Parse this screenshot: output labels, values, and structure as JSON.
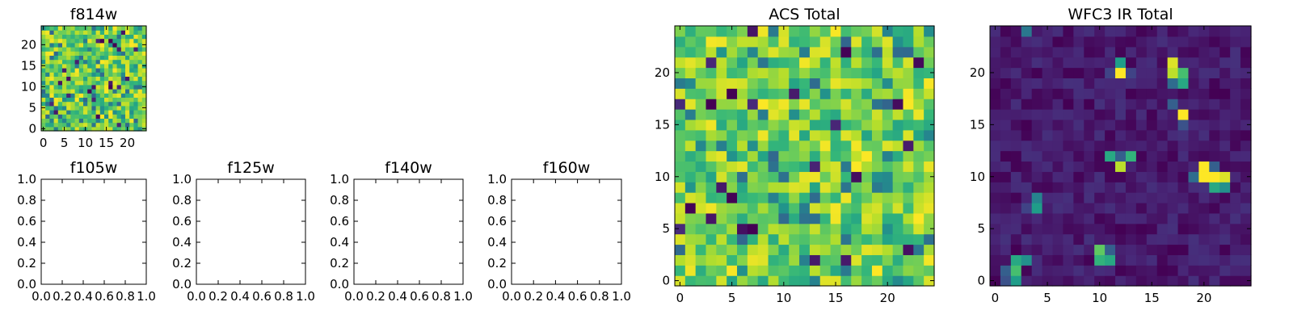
{
  "chart_data": [
    {
      "type": "heatmap",
      "title": "f814w",
      "xticks": [
        "0",
        "5",
        "10",
        "15",
        "20"
      ],
      "yticks": [
        "0",
        "5",
        "10",
        "15",
        "20"
      ],
      "xlim": [
        -0.5,
        24.5
      ],
      "ylim": [
        -0.5,
        24.5
      ],
      "grid_size": 25,
      "pattern": "noise",
      "seed": 11
    },
    {
      "type": "scatter",
      "title": "f105w",
      "xticks": [
        "0.0",
        "0.2",
        "0.4",
        "0.6",
        "0.8",
        "1.0"
      ],
      "yticks": [
        "0.0",
        "0.2",
        "0.4",
        "0.6",
        "0.8",
        "1.0"
      ],
      "xlim": [
        0,
        1
      ],
      "ylim": [
        0,
        1
      ],
      "series": []
    },
    {
      "type": "scatter",
      "title": "f125w",
      "xticks": [
        "0.0",
        "0.2",
        "0.4",
        "0.6",
        "0.8",
        "1.0"
      ],
      "yticks": [
        "0.0",
        "0.2",
        "0.4",
        "0.6",
        "0.8",
        "1.0"
      ],
      "xlim": [
        0,
        1
      ],
      "ylim": [
        0,
        1
      ],
      "series": []
    },
    {
      "type": "scatter",
      "title": "f140w",
      "xticks": [
        "0.0",
        "0.2",
        "0.4",
        "0.6",
        "0.8",
        "1.0"
      ],
      "yticks": [
        "0.0",
        "0.2",
        "0.4",
        "0.6",
        "0.8",
        "1.0"
      ],
      "xlim": [
        0,
        1
      ],
      "ylim": [
        0,
        1
      ],
      "series": []
    },
    {
      "type": "scatter",
      "title": "f160w",
      "xticks": [
        "0.0",
        "0.2",
        "0.4",
        "0.6",
        "0.8",
        "1.0"
      ],
      "yticks": [
        "0.0",
        "0.2",
        "0.4",
        "0.6",
        "0.8",
        "1.0"
      ],
      "xlim": [
        0,
        1
      ],
      "ylim": [
        0,
        1
      ],
      "series": []
    },
    {
      "type": "heatmap",
      "title": "ACS Total",
      "xticks": [
        "0",
        "5",
        "10",
        "15",
        "20"
      ],
      "yticks": [
        "0",
        "5",
        "10",
        "15",
        "20"
      ],
      "xlim": [
        -0.5,
        24.5
      ],
      "ylim": [
        -0.5,
        24.5
      ],
      "grid_size": 25,
      "pattern": "noise",
      "seed": 29
    },
    {
      "type": "heatmap",
      "title": "WFC3 IR Total",
      "xticks": [
        "0",
        "5",
        "10",
        "15",
        "20"
      ],
      "yticks": [
        "0",
        "5",
        "10",
        "15",
        "20"
      ],
      "xlim": [
        -0.5,
        24.5
      ],
      "ylim": [
        -0.5,
        24.5
      ],
      "grid_size": 25,
      "pattern": "sources",
      "seed": 7,
      "background_range": [
        0.0,
        0.14
      ],
      "sources": [
        {
          "x": 3,
          "y": 24,
          "v": 0.4
        },
        {
          "x": 12,
          "y": 20,
          "v": 1.0
        },
        {
          "x": 12,
          "y": 21,
          "v": 0.55
        },
        {
          "x": 11,
          "y": 20,
          "v": 0.2
        },
        {
          "x": 13,
          "y": 20,
          "v": 0.2
        },
        {
          "x": 17,
          "y": 21,
          "v": 0.95
        },
        {
          "x": 17,
          "y": 20,
          "v": 0.9
        },
        {
          "x": 18,
          "y": 20,
          "v": 0.7
        },
        {
          "x": 18,
          "y": 19,
          "v": 0.6
        },
        {
          "x": 17,
          "y": 19,
          "v": 0.35
        },
        {
          "x": 17,
          "y": 17,
          "v": 0.3
        },
        {
          "x": 18,
          "y": 16,
          "v": 1.0
        },
        {
          "x": 18,
          "y": 15,
          "v": 0.25
        },
        {
          "x": 11,
          "y": 12,
          "v": 0.6
        },
        {
          "x": 12,
          "y": 11,
          "v": 0.9
        },
        {
          "x": 13,
          "y": 12,
          "v": 0.65
        },
        {
          "x": 12,
          "y": 12,
          "v": 0.3
        },
        {
          "x": 20,
          "y": 11,
          "v": 1.0
        },
        {
          "x": 20,
          "y": 10,
          "v": 1.0
        },
        {
          "x": 21,
          "y": 10,
          "v": 1.0
        },
        {
          "x": 22,
          "y": 10,
          "v": 0.95
        },
        {
          "x": 21,
          "y": 9,
          "v": 0.6
        },
        {
          "x": 22,
          "y": 9,
          "v": 0.5
        },
        {
          "x": 19,
          "y": 10,
          "v": 0.35
        },
        {
          "x": 21,
          "y": 11,
          "v": 0.3
        },
        {
          "x": 4,
          "y": 8,
          "v": 0.45
        },
        {
          "x": 4,
          "y": 7,
          "v": 0.55
        },
        {
          "x": 3,
          "y": 7,
          "v": 0.2
        },
        {
          "x": 10,
          "y": 3,
          "v": 0.75
        },
        {
          "x": 10,
          "y": 2,
          "v": 0.65
        },
        {
          "x": 11,
          "y": 2,
          "v": 0.6
        },
        {
          "x": 11,
          "y": 3,
          "v": 0.3
        },
        {
          "x": 2,
          "y": 2,
          "v": 0.6
        },
        {
          "x": 3,
          "y": 2,
          "v": 0.5
        },
        {
          "x": 2,
          "y": 1,
          "v": 0.7
        },
        {
          "x": 2,
          "y": 0,
          "v": 0.55
        },
        {
          "x": 1,
          "y": 1,
          "v": 0.3
        },
        {
          "x": 1,
          "y": 0,
          "v": 0.25
        }
      ]
    }
  ]
}
